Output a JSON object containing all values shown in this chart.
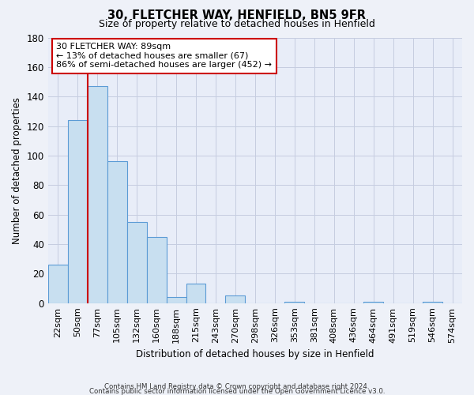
{
  "title": "30, FLETCHER WAY, HENFIELD, BN5 9FR",
  "subtitle": "Size of property relative to detached houses in Henfield",
  "xlabel": "Distribution of detached houses by size in Henfield",
  "ylabel": "Number of detached properties",
  "bin_labels": [
    "22sqm",
    "50sqm",
    "77sqm",
    "105sqm",
    "132sqm",
    "160sqm",
    "188sqm",
    "215sqm",
    "243sqm",
    "270sqm",
    "298sqm",
    "326sqm",
    "353sqm",
    "381sqm",
    "408sqm",
    "436sqm",
    "464sqm",
    "491sqm",
    "519sqm",
    "546sqm",
    "574sqm"
  ],
  "bar_values": [
    26,
    124,
    147,
    96,
    55,
    45,
    4,
    13,
    0,
    5,
    0,
    0,
    1,
    0,
    0,
    0,
    1,
    0,
    0,
    1,
    0
  ],
  "bar_color": "#c8dff0",
  "bar_edge_color": "#5b9bd5",
  "property_line_color": "#cc0000",
  "ylim": [
    0,
    180
  ],
  "yticks": [
    0,
    20,
    40,
    60,
    80,
    100,
    120,
    140,
    160,
    180
  ],
  "annotation_title": "30 FLETCHER WAY: 89sqm",
  "annotation_line1": "← 13% of detached houses are smaller (67)",
  "annotation_line2": "86% of semi-detached houses are larger (452) →",
  "footnote1": "Contains HM Land Registry data © Crown copyright and database right 2024.",
  "footnote2": "Contains public sector information licensed under the Open Government Licence v3.0.",
  "bg_color": "#eef1f8",
  "plot_bg_color": "#e8edf8",
  "grid_color": "#c5cde0"
}
